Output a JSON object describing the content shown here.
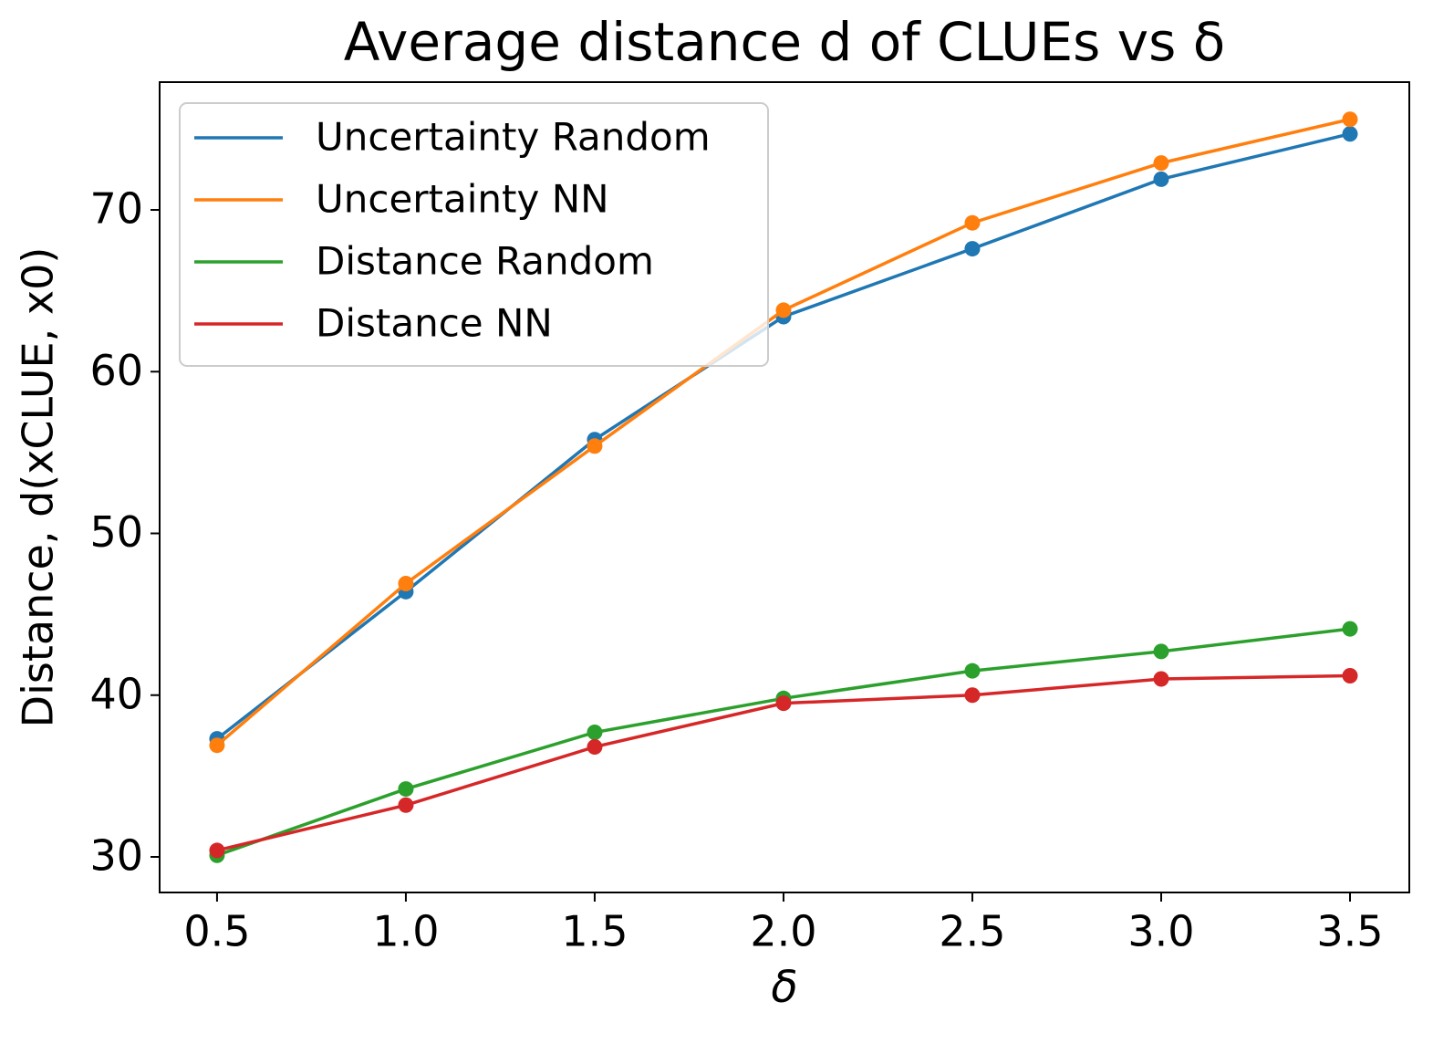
{
  "chart_data": {
    "type": "line",
    "title": "Average distance d of CLUEs vs δ",
    "xlabel": "δ",
    "ylabel": "Distance, d(xCLUE, x0)",
    "x": [
      0.5,
      1.0,
      1.5,
      2.0,
      2.5,
      3.0,
      3.5
    ],
    "series": [
      {
        "name": "Uncertainty Random",
        "color": "#1f77b4",
        "values": [
          37.3,
          46.4,
          55.8,
          63.4,
          67.6,
          71.9,
          74.7
        ]
      },
      {
        "name": "Uncertainty NN",
        "color": "#ff7f0e",
        "values": [
          36.9,
          46.9,
          55.4,
          63.8,
          69.2,
          72.9,
          75.6
        ]
      },
      {
        "name": "Distance Random",
        "color": "#2ca02c",
        "values": [
          30.1,
          34.2,
          37.7,
          39.8,
          41.5,
          42.7,
          44.1
        ]
      },
      {
        "name": "Distance NN",
        "color": "#d62728",
        "values": [
          30.4,
          33.2,
          36.8,
          39.5,
          40.0,
          41.0,
          41.2
        ]
      }
    ],
    "xlim": [
      0.348,
      3.657
    ],
    "ylim": [
      27.8,
      77.9
    ],
    "xticks": [
      0.5,
      {
        "value": 1,
        "label": "1.0"
      },
      1.5,
      {
        "value": 2,
        "label": "2.0"
      },
      2.5,
      {
        "value": 3,
        "label": "3.0"
      },
      3.5
    ],
    "yticks": [
      30,
      40,
      50,
      60,
      70
    ],
    "grid": false,
    "legend": "upper-left",
    "markers": true
  }
}
